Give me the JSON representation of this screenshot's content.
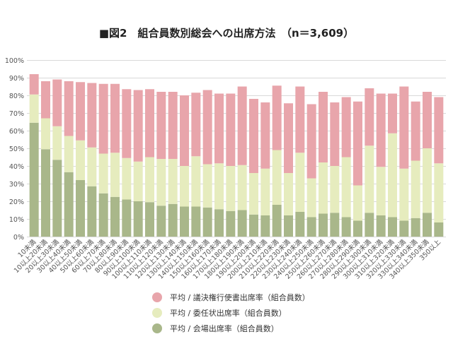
{
  "chart_data": {
    "type": "bar",
    "stacked": true,
    "title": "■図2　組合員数別総会への出席方法　（n＝3,609）",
    "categories": [
      "10未満",
      "10以上20未満",
      "20以上30未満",
      "30以上40未満",
      "40以上50未満",
      "50以上60未満",
      "60以上70未満",
      "70以上80未満",
      "80以上90未満",
      "90以上100未満",
      "100以上110未満",
      "110以上120未満",
      "120以上130未満",
      "130以上140未満",
      "140以上150未満",
      "150以上160未満",
      "160以上170未満",
      "170以上180未満",
      "180以上190未満",
      "190以上200未満",
      "200以上210未満",
      "210以上220未満",
      "220以上230未満",
      "230以上240未満",
      "240以上250未満",
      "250以上260未満",
      "260以上270未満",
      "270以上280未満",
      "280以上290未満",
      "290以上300未満",
      "300以上310未満",
      "310以上320未満",
      "320以上330未満",
      "330以上340未満",
      "340以上350未満",
      "350以上"
    ],
    "ylim": [
      0,
      100
    ],
    "yticks": [
      "0%",
      "10%",
      "20%",
      "30%",
      "40%",
      "50%",
      "60%",
      "70%",
      "80%",
      "90%",
      "100%"
    ],
    "grid": true,
    "legend_position": "bottom",
    "series": [
      {
        "name": "平均 / 会場出席率（組合員数）",
        "color": "#a9b78a",
        "values": [
          64.5,
          49.5,
          43.5,
          36.5,
          32.0,
          28.5,
          24.5,
          22.5,
          21.0,
          20.0,
          19.5,
          17.5,
          18.5,
          17.0,
          17.0,
          16.5,
          15.5,
          14.5,
          15.0,
          12.5,
          12.0,
          18.0,
          12.0,
          14.0,
          11.0,
          13.0,
          13.5,
          11.0,
          9.0,
          13.5,
          12.0,
          11.0,
          9.0,
          10.5,
          13.5,
          8.0
        ]
      },
      {
        "name": "平均 / 委任状出席率（組合員数）",
        "color": "#e6ecbe",
        "values": [
          16.0,
          17.5,
          19.0,
          20.5,
          22.5,
          22.0,
          22.5,
          25.0,
          23.5,
          22.5,
          25.5,
          26.5,
          25.5,
          23.0,
          28.5,
          24.5,
          26.0,
          25.5,
          25.5,
          23.5,
          26.5,
          31.0,
          24.0,
          33.5,
          22.0,
          29.0,
          26.5,
          34.0,
          20.0,
          38.0,
          27.5,
          47.5,
          29.5,
          32.5,
          36.5,
          33.5
        ]
      },
      {
        "name": "平均 / 議決権行使書出席率（組合員数）",
        "color": "#e8a5ab",
        "values": [
          11.5,
          21.0,
          26.5,
          31.0,
          33.0,
          36.5,
          39.5,
          39.0,
          39.0,
          40.5,
          38.5,
          38.0,
          38.0,
          40.0,
          36.0,
          42.0,
          39.5,
          41.0,
          44.5,
          42.0,
          37.5,
          36.5,
          39.5,
          37.5,
          42.0,
          40.0,
          36.0,
          34.0,
          47.5,
          32.5,
          41.5,
          22.5,
          46.5,
          33.5,
          32.0,
          37.5
        ]
      }
    ]
  }
}
